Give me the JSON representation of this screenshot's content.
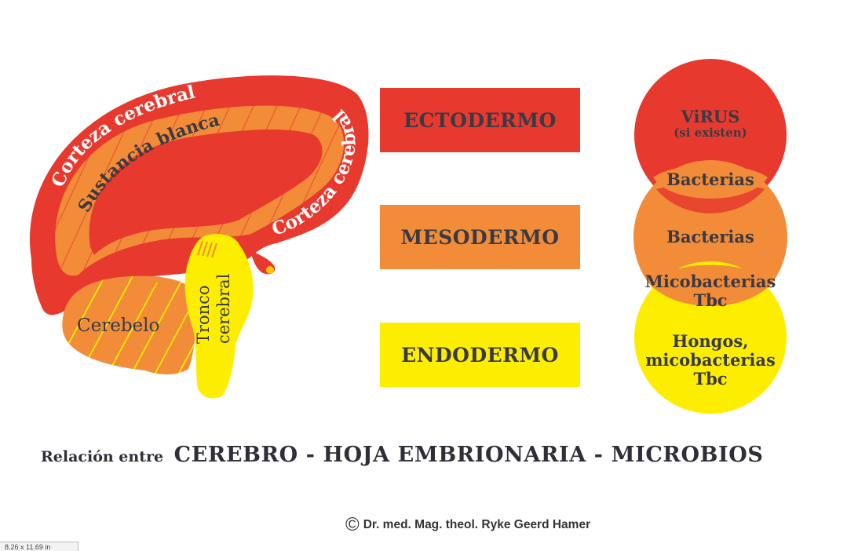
{
  "brain": {
    "label_corteza_top": "Corteza cerebral",
    "label_sustancia": "Sustancia blanca",
    "label_corteza_right": "Corteza cerebral",
    "label_cerebelo": "Cerebelo",
    "label_tronco_1": "Tronco",
    "label_tronco_2": "cerebral"
  },
  "layers": [
    {
      "label": "ECTODERMO",
      "color": "#e8392f"
    },
    {
      "label": "MESODERMO",
      "color": "#f28c38"
    },
    {
      "label": "ENDODERMO",
      "color": "#fdee00"
    }
  ],
  "microbes": {
    "virus_title": "ViRUS",
    "virus_sub": "(si existen)",
    "overlap_top": "Bacterias",
    "middle": "Bacterias",
    "overlap_bottom_1": "Micobacterias",
    "overlap_bottom_2": "Tbc",
    "bottom_1": "Hongos,",
    "bottom_2": "micobacterias",
    "bottom_3": "Tbc"
  },
  "caption": {
    "prefix": "Relación entre",
    "main": "CEREBRO - HOJA EMBRIONARIA - MICROBIOS"
  },
  "credit": {
    "symbol": "©",
    "text": "Dr. med. Mag. theol. Ryke Geerd Hamer"
  },
  "page_size_label": "8.26 x 11.69 in",
  "colors": {
    "red": "#e8392f",
    "orange": "#f28c38",
    "yellow": "#fdee00",
    "text_dark": "#3a3a44"
  }
}
